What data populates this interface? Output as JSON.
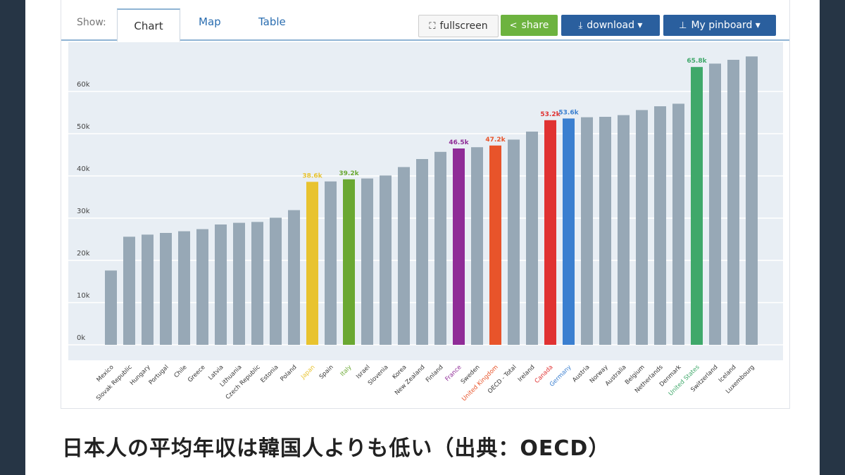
{
  "toolbar": {
    "show_label": "Show:",
    "tabs": [
      {
        "label": "Chart",
        "active": true
      },
      {
        "label": "Map",
        "active": false
      },
      {
        "label": "Table",
        "active": false
      }
    ],
    "fullscreen_label": "fullscreen",
    "share_label": "share",
    "download_label": "download ▾",
    "pinboard_label": "My pinboard ▾"
  },
  "caption": "日本人の平均年収は韓国人よりも低い（出典：OECD）",
  "colors": {
    "default_bar": "#97a8b6",
    "plot_bg": "#e8eef4",
    "grid": "#ffffff",
    "Japan": "#e8c32f",
    "Italy": "#6aa832",
    "France": "#8f2c97",
    "United Kingdom": "#e8542a",
    "Canada": "#e03232",
    "Germany": "#3a7fd0",
    "United States": "#3fa86a"
  },
  "chart_data": {
    "type": "bar",
    "categories": [
      "Mexico",
      "Slovak Republic",
      "Hungary",
      "Portugal",
      "Chile",
      "Greece",
      "Latvia",
      "Lithuania",
      "Czech Republic",
      "Estonia",
      "Poland",
      "Japan",
      "Spain",
      "Italy",
      "Israel",
      "Slovenia",
      "Korea",
      "New Zealand",
      "Finland",
      "France",
      "Sweden",
      "United Kingdom",
      "OECD - Total",
      "Ireland",
      "Canada",
      "Germany",
      "Austria",
      "Norway",
      "Australia",
      "Belgium",
      "Netherlands",
      "Denmark",
      "United States",
      "Switzerland",
      "Iceland",
      "Luxembourg"
    ],
    "values": [
      17.6,
      25.6,
      26.1,
      26.5,
      26.9,
      27.4,
      28.5,
      28.9,
      29.1,
      30.1,
      31.9,
      38.6,
      38.7,
      39.2,
      39.4,
      40.1,
      42.1,
      44.0,
      45.7,
      46.5,
      46.8,
      47.2,
      48.6,
      50.5,
      53.2,
      53.6,
      53.9,
      54.0,
      54.4,
      55.6,
      56.5,
      57.1,
      65.8,
      66.6,
      67.5,
      68.3
    ],
    "data_labels": {
      "Japan": "38.6k",
      "Italy": "39.2k",
      "France": "46.5k",
      "United Kingdom": "47.2k",
      "Canada": "53.2k",
      "Germany": "53.6k",
      "United States": "65.8k"
    },
    "y_ticks": [
      0,
      10,
      20,
      30,
      40,
      50,
      60
    ],
    "y_tick_labels": [
      "0k",
      "10k",
      "20k",
      "30k",
      "40k",
      "50k",
      "60k"
    ],
    "ylim": [
      0,
      70
    ],
    "grid": true,
    "xlabel": "",
    "ylabel": "",
    "title": ""
  }
}
